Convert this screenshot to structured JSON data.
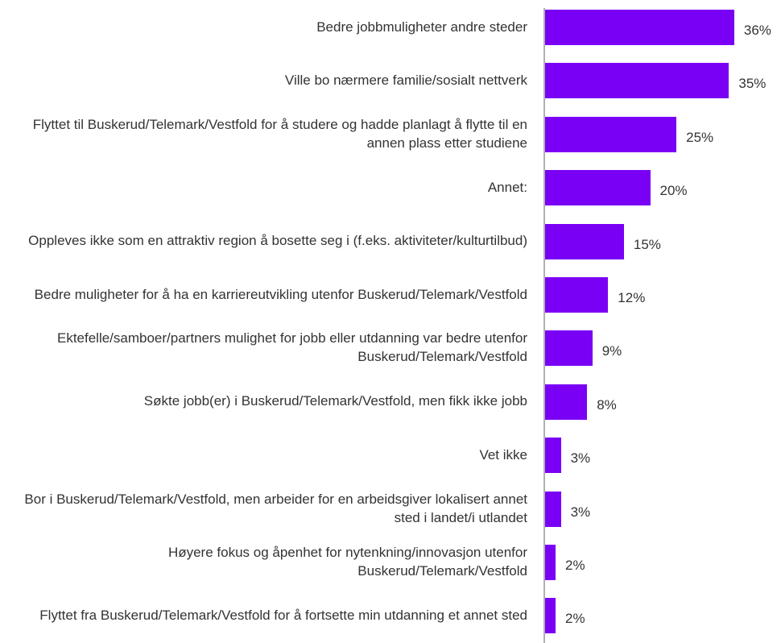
{
  "chart_data": {
    "type": "bar",
    "orientation": "horizontal",
    "color": "#7a00f5",
    "categories": [
      "Bedre jobbmuligheter andre steder",
      "Ville bo nærmere familie/sosialt nettverk",
      "Flyttet til Buskerud/Telemark/Vestfold for å studere og hadde planlagt å flytte til en annen plass etter studiene",
      "Annet:",
      "Oppleves ikke som en attraktiv region å bosette seg i (f.eks. aktiviteter/kulturtilbud)",
      "Bedre muligheter for å ha en karriereutvikling utenfor Buskerud/Telemark/Vestfold",
      "Ektefelle/samboer/partners mulighet for jobb eller utdanning var bedre utenfor Buskerud/Telemark/Vestfold",
      "Søkte jobb(er) i Buskerud/Telemark/Vestfold, men fikk ikke jobb",
      "Vet ikke",
      "Bor i Buskerud/Telemark/Vestfold, men arbeider for en arbeidsgiver lokalisert annet sted i landet/i utlandet",
      "Høyere fokus og åpenhet for nytenkning/innovasjon utenfor Buskerud/Telemark/Vestfold",
      "Flyttet fra Buskerud/Telemark/Vestfold for å fortsette min utdanning et annet sted"
    ],
    "values": [
      36,
      35,
      25,
      20,
      15,
      12,
      9,
      8,
      3,
      3,
      2,
      2
    ],
    "value_labels": [
      "36%",
      "35%",
      "25%",
      "20%",
      "15%",
      "12%",
      "9%",
      "8%",
      "3%",
      "3%",
      "2%",
      "2%"
    ],
    "xlim": [
      0,
      40
    ]
  }
}
